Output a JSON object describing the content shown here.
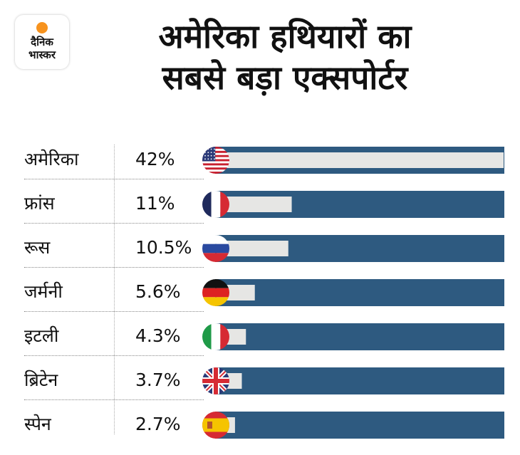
{
  "logo": {
    "line1": "दैनिक",
    "line2": "भास्कर",
    "sun_color": "#f7931e"
  },
  "title": {
    "line1": "अमेरिका हथियारों का",
    "line2": "सबसे बड़ा एक्सपोर्टर"
  },
  "colors": {
    "bar_track": "#2e5a80",
    "bar_fill": "#e6e6e4"
  },
  "chart_data": {
    "type": "bar",
    "orientation": "horizontal",
    "title": "अमेरिका हथियारों का सबसे बड़ा एक्सपोर्टर",
    "xlabel": "",
    "ylabel": "",
    "unit": "%",
    "xlim": [
      0,
      42
    ],
    "categories": [
      "अमेरिका",
      "फ्रांस",
      "रूस",
      "जर्मनी",
      "इटली",
      "ब्रिटेन",
      "स्पेन"
    ],
    "labels": [
      "42%",
      "11%",
      "10.5%",
      "5.6%",
      "4.3%",
      "3.7%",
      "2.7%"
    ],
    "values": [
      42,
      11,
      10.5,
      5.6,
      4.3,
      3.7,
      2.7
    ],
    "flags": [
      "flag-usa-icon",
      "flag-france-icon",
      "flag-russia-icon",
      "flag-germany-icon",
      "flag-italy-icon",
      "flag-uk-icon",
      "flag-spain-icon"
    ]
  }
}
